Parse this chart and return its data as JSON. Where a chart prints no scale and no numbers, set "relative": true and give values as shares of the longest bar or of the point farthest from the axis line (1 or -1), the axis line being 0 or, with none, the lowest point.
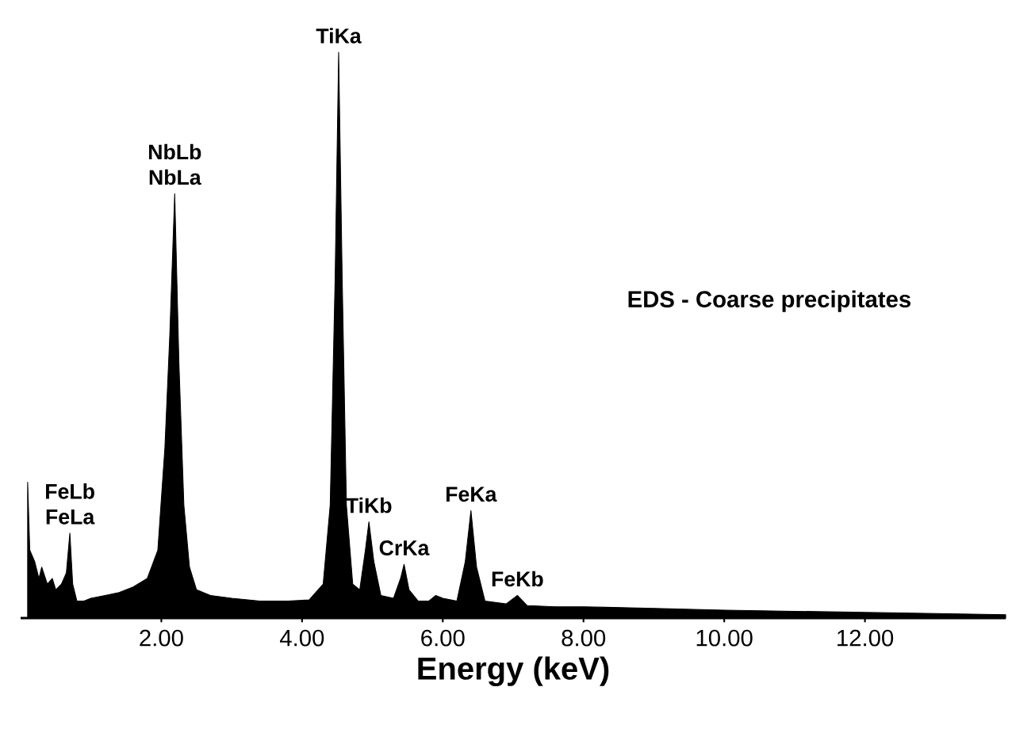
{
  "chart_data": {
    "type": "area",
    "relative": true,
    "xlabel": "Energy (keV)",
    "color": "#000000",
    "xlim": [
      0,
      14
    ],
    "xticks": [
      {
        "value": 2,
        "label": "2.00"
      },
      {
        "value": 4,
        "label": "4.00"
      },
      {
        "value": 6,
        "label": "6.00"
      },
      {
        "value": 8,
        "label": "8.00"
      },
      {
        "value": 10,
        "label": "10.00"
      },
      {
        "value": 12,
        "label": "12.00"
      }
    ],
    "x": [
      0.1,
      0.13,
      0.2,
      0.26,
      0.3,
      0.38,
      0.45,
      0.5,
      0.58,
      0.65,
      0.7,
      0.74,
      0.8,
      0.9,
      1.0,
      1.2,
      1.4,
      1.6,
      1.8,
      1.95,
      2.05,
      2.12,
      2.19,
      2.25,
      2.32,
      2.4,
      2.5,
      2.7,
      3.0,
      3.4,
      3.8,
      4.1,
      4.3,
      4.4,
      4.47,
      4.52,
      4.57,
      4.63,
      4.72,
      4.82,
      4.9,
      4.95,
      5.02,
      5.12,
      5.3,
      5.4,
      5.45,
      5.52,
      5.65,
      5.8,
      5.9,
      6.0,
      6.2,
      6.32,
      6.4,
      6.48,
      6.6,
      6.9,
      7.06,
      7.2,
      7.6,
      8.0,
      9.0,
      10.0,
      11.0,
      12.0,
      13.0,
      14.0
    ],
    "values": [
      0.24,
      0.12,
      0.1,
      0.07,
      0.09,
      0.06,
      0.07,
      0.05,
      0.06,
      0.08,
      0.15,
      0.06,
      0.03,
      0.03,
      0.035,
      0.04,
      0.045,
      0.055,
      0.07,
      0.12,
      0.3,
      0.5,
      0.75,
      0.45,
      0.2,
      0.09,
      0.05,
      0.04,
      0.035,
      0.03,
      0.03,
      0.032,
      0.06,
      0.2,
      0.6,
      1.0,
      0.6,
      0.2,
      0.06,
      0.05,
      0.12,
      0.17,
      0.1,
      0.04,
      0.035,
      0.07,
      0.095,
      0.05,
      0.03,
      0.03,
      0.04,
      0.035,
      0.03,
      0.1,
      0.19,
      0.09,
      0.03,
      0.025,
      0.04,
      0.022,
      0.02,
      0.02,
      0.017,
      0.014,
      0.012,
      0.01,
      0.008,
      0.006
    ],
    "annotations": [
      {
        "text": "FeLb",
        "x": 0.7,
        "y": 0.15
      },
      {
        "text": "FeLa",
        "x": 0.7,
        "y": 0.15
      },
      {
        "text": "NbLb",
        "x": 2.19,
        "y": 0.75
      },
      {
        "text": "NbLa",
        "x": 2.19,
        "y": 0.75
      },
      {
        "text": "TiKa",
        "x": 4.52,
        "y": 1.0
      },
      {
        "text": "TiKb",
        "x": 4.95,
        "y": 0.17
      },
      {
        "text": "CrKa",
        "x": 5.45,
        "y": 0.095
      },
      {
        "text": "FeKa",
        "x": 6.4,
        "y": 0.19
      },
      {
        "text": "FeKb",
        "x": 7.06,
        "y": 0.04
      },
      "EDS - Coarse precipitates"
    ]
  }
}
